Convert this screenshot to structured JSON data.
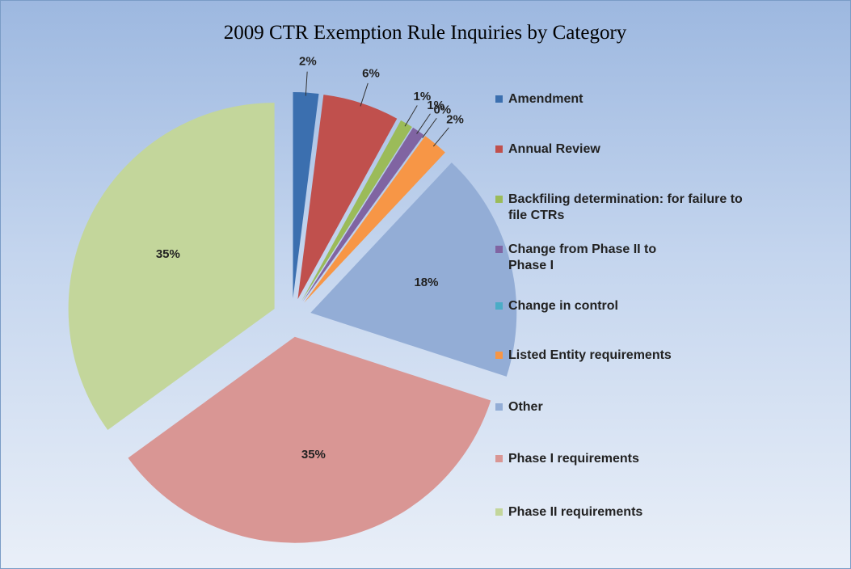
{
  "chart_data": {
    "type": "pie",
    "title": "2009 CTR Exemption Rule Inquiries by Category",
    "categories": [
      "Amendment",
      "Annual Review",
      "Backfiling determination:  for failure to file CTRs",
      "Change from Phase II to Phase I",
      "Change in control",
      "Listed Entity requirements",
      "Other",
      "Phase I requirements",
      "Phase II requirements"
    ],
    "values": [
      2,
      6,
      1,
      1,
      0,
      2,
      18,
      35,
      35
    ],
    "value_labels": [
      "2%",
      "6%",
      "1%",
      "1%",
      "0%",
      "2%",
      "18%",
      "35%",
      "35%"
    ],
    "colors": [
      "#3b6faf",
      "#c0504d",
      "#9bbb59",
      "#8064a2",
      "#4bacc6",
      "#f79646",
      "#93add6",
      "#d99694",
      "#c3d69b"
    ],
    "legend": "right"
  }
}
